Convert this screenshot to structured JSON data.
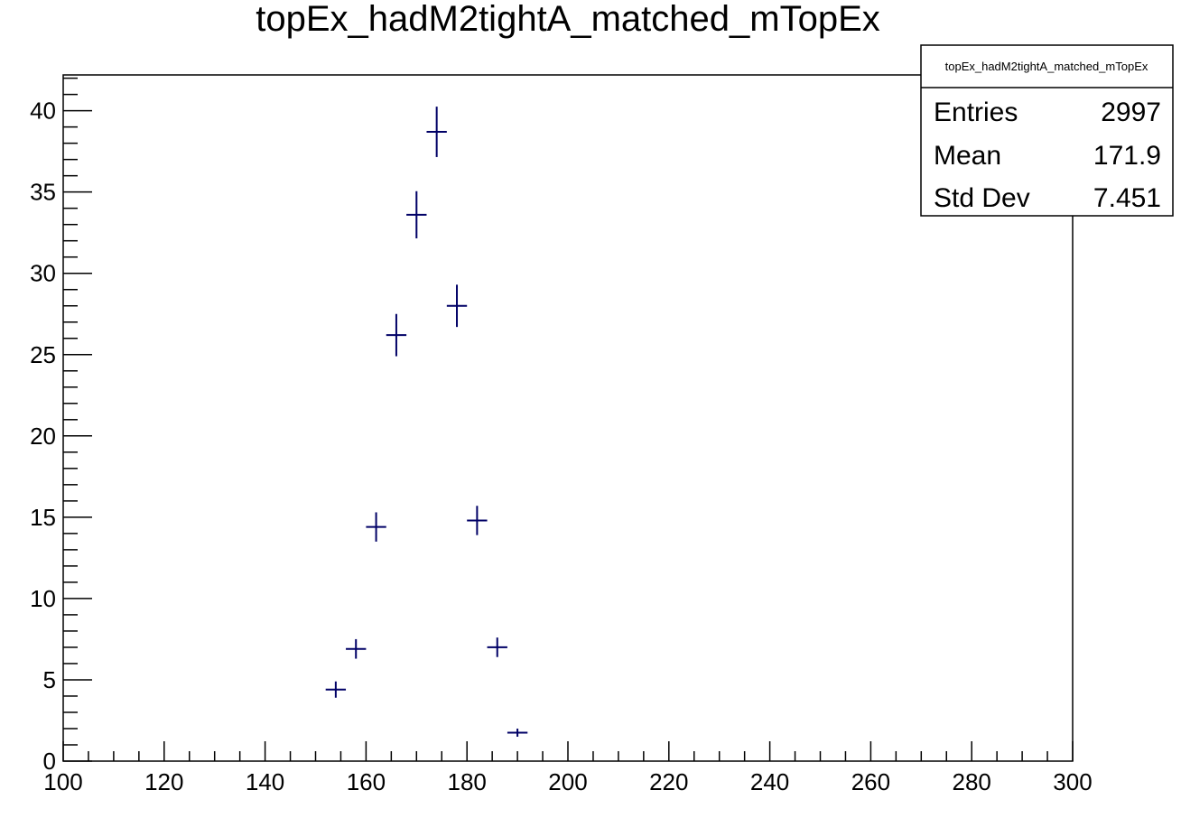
{
  "chart_data": {
    "type": "scatter",
    "title": "topEx_hadM2tightA_matched_mTopEx",
    "xlabel": "",
    "ylabel": "",
    "xlim": [
      100,
      300
    ],
    "ylim": [
      0,
      42.2
    ],
    "x_ticks": [
      100,
      120,
      140,
      160,
      180,
      200,
      220,
      240,
      260,
      280,
      300
    ],
    "y_ticks": [
      0,
      5,
      10,
      15,
      20,
      25,
      30,
      35,
      40
    ],
    "x_ticks_display": [
      "100",
      "120",
      "140",
      "160",
      "180",
      "200",
      "220",
      "240",
      "260",
      "280",
      "300"
    ],
    "y_ticks_display": [
      "0",
      "5",
      "10",
      "15",
      "20",
      "25",
      "30",
      "35",
      "40"
    ],
    "bin_width": 4,
    "series": [
      {
        "color": "#000066",
        "points": [
          {
            "x": 154,
            "y": 4.4,
            "err": 0.5
          },
          {
            "x": 158,
            "y": 6.9,
            "err": 0.6
          },
          {
            "x": 162,
            "y": 14.4,
            "err": 0.9
          },
          {
            "x": 166,
            "y": 26.2,
            "err": 1.3
          },
          {
            "x": 170,
            "y": 33.6,
            "err": 1.45
          },
          {
            "x": 174,
            "y": 38.7,
            "err": 1.55
          },
          {
            "x": 178,
            "y": 28.0,
            "err": 1.3
          },
          {
            "x": 182,
            "y": 14.8,
            "err": 0.9
          },
          {
            "x": 186,
            "y": 7.0,
            "err": 0.6
          },
          {
            "x": 190,
            "y": 1.75,
            "err": 0.25
          }
        ]
      }
    ],
    "grid": false,
    "legend": "none"
  },
  "stats_box": {
    "title": "topEx_hadM2tightA_matched_mTopEx",
    "rows": [
      {
        "label": "Entries",
        "value": "2997"
      },
      {
        "label": "Mean",
        "value": "171.9"
      },
      {
        "label": "Std Dev",
        "value": "7.451"
      }
    ]
  }
}
